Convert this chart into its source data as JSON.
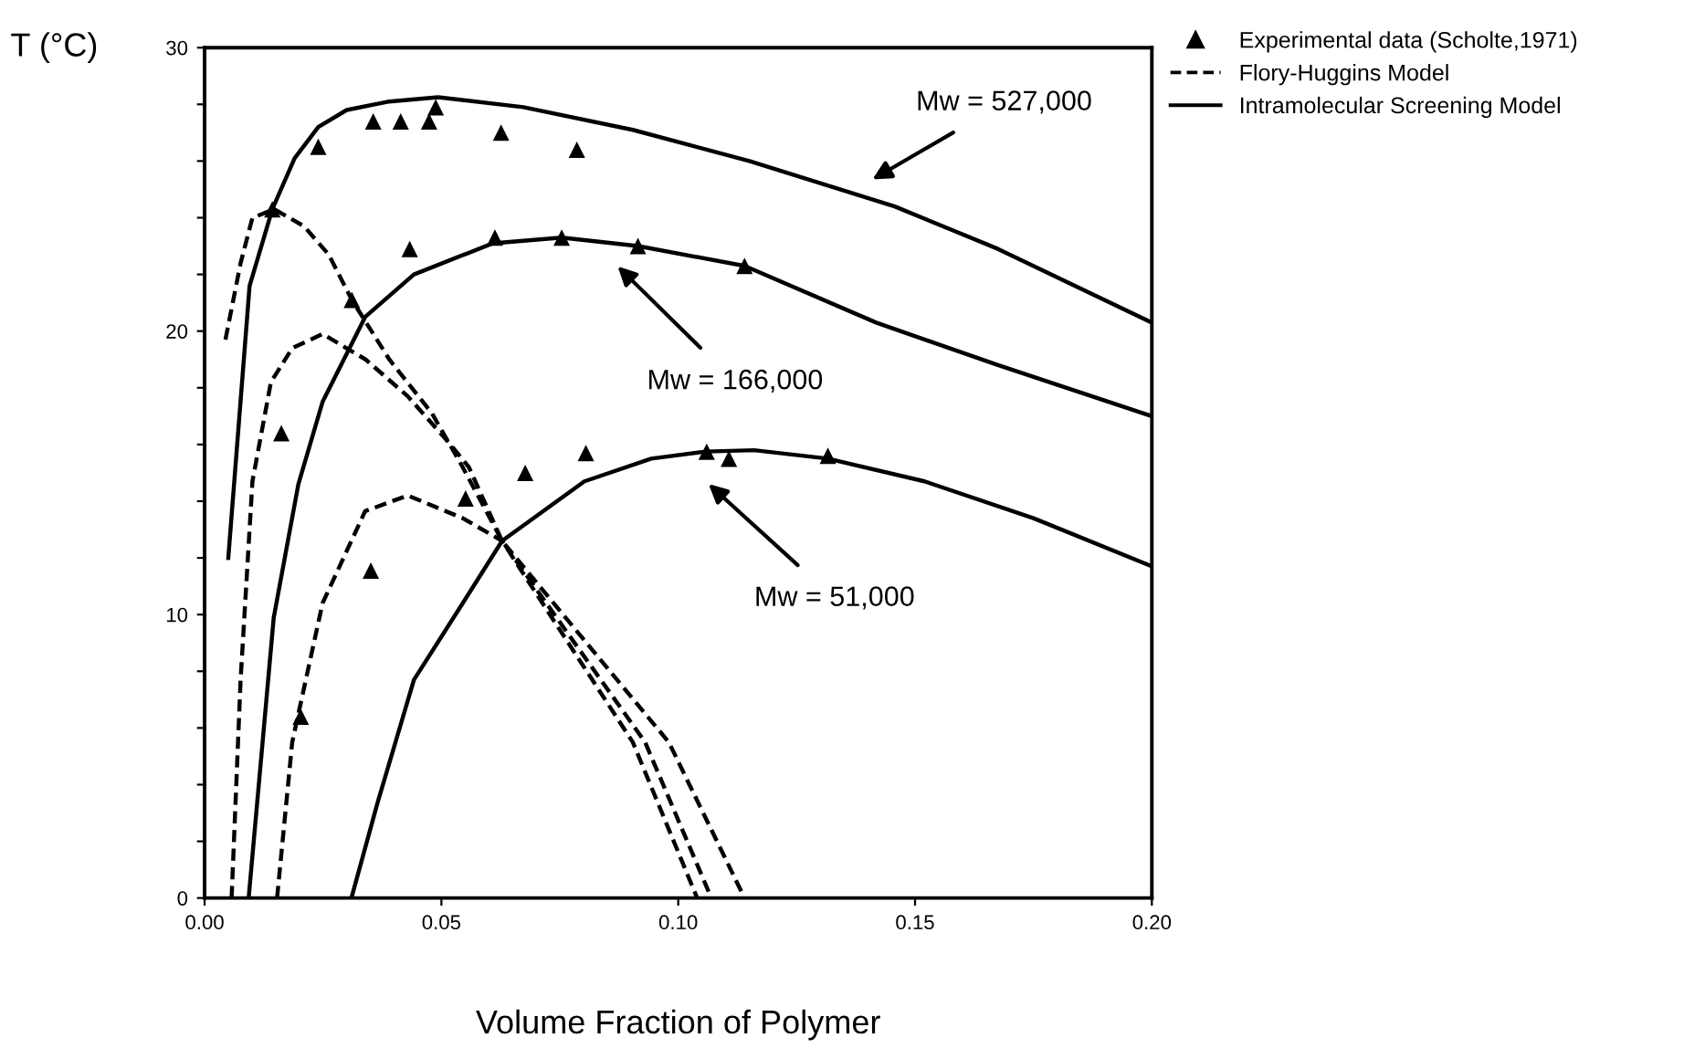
{
  "chart_data": {
    "type": "line",
    "xlabel": "Volume Fraction of Polymer",
    "ylabel": "T (°C)",
    "xlim": [
      0,
      0.2
    ],
    "ylim": [
      0,
      30
    ],
    "xticks": [
      {
        "value": 0,
        "label": "0.00"
      },
      {
        "value": 0.05,
        "label": "0.05"
      },
      {
        "value": 0.1,
        "label": "0.10"
      },
      {
        "value": 0.15,
        "label": "0.15"
      },
      {
        "value": 0.2,
        "label": "0.20"
      }
    ],
    "yticks": [
      0,
      {
        "value": 2,
        "label": null
      },
      {
        "value": 4,
        "label": null
      },
      {
        "value": 6,
        "label": null
      },
      {
        "value": 8,
        "label": null
      },
      10,
      {
        "value": 12,
        "label": null
      },
      {
        "value": 14,
        "label": null
      },
      {
        "value": 16,
        "label": null
      },
      {
        "value": 18,
        "label": null
      },
      20,
      {
        "value": 22,
        "label": null
      },
      {
        "value": 24,
        "label": null
      },
      {
        "value": 26,
        "label": null
      },
      {
        "value": 28,
        "label": null
      },
      30
    ],
    "legend": "top right",
    "grid": false,
    "series": [
      {
        "name": "Experimental data (Scholte,1971)",
        "type": "scatter",
        "marker": "triangle",
        "color": "#000000",
        "x": [
          0.024,
          0.0356,
          0.0414,
          0.0474,
          0.0488,
          0.0626,
          0.0786,
          0.0143,
          0.0433,
          0.0613,
          0.0754,
          0.0915,
          0.114,
          0.0311,
          0.0162,
          0.0805,
          0.106,
          0.1107,
          0.1316,
          0.0677,
          0.0551,
          0.0351,
          0.0203
        ],
        "values": [
          26.5,
          27.4,
          27.4,
          27.4,
          27.9,
          27.0,
          26.4,
          24.3,
          22.9,
          23.3,
          23.3,
          23.0,
          22.3,
          21.1,
          16.4,
          15.7,
          15.75,
          15.5,
          15.6,
          15.0,
          14.1,
          11.55,
          6.4
        ]
      },
      {
        "name": "Flory-Huggins Model",
        "type": "line",
        "line_style": "dashed",
        "color": "#000000",
        "x": [
          0.0044,
          0.0076,
          0.0101,
          0.0147,
          0.021,
          0.0262,
          0.0311,
          0.039,
          0.048,
          0.0545,
          0.0628,
          0.098,
          0.114
        ],
        "values": [
          19.7,
          22.4,
          24.0,
          24.3,
          23.7,
          22.7,
          21.1,
          19.0,
          17.1,
          15.2,
          12.6,
          5.5,
          0
        ]
      },
      {
        "type": "line",
        "line_style": "dashed",
        "color": "#000000",
        "x": [
          0.0057,
          0.0076,
          0.0101,
          0.014,
          0.0185,
          0.0249,
          0.034,
          0.0429,
          0.0519,
          0.0558,
          0.0628,
          0.093,
          0.107
        ],
        "values": [
          0,
          7.7,
          14.7,
          18.2,
          19.4,
          19.9,
          19.0,
          17.7,
          16.0,
          15.2,
          12.6,
          5.5,
          0
        ]
      },
      {
        "type": "line",
        "line_style": "dashed",
        "color": "#000000",
        "x": [
          0.0153,
          0.0185,
          0.0249,
          0.0339,
          0.0429,
          0.0545,
          0.0628,
          0.0904,
          0.104
        ],
        "values": [
          0,
          5.5,
          10.4,
          13.65,
          14.2,
          13.4,
          12.6,
          5.5,
          0
        ]
      },
      {
        "name": "Intramolecular Screening Model",
        "type": "line",
        "line_style": "solid",
        "color": "#000000",
        "x": [
          0.005,
          0.0095,
          0.0143,
          0.019,
          0.024,
          0.03,
          0.039,
          0.0493,
          0.0673,
          0.0904,
          0.115,
          0.1457,
          0.1675,
          0.2
        ],
        "values": [
          12.0,
          21.6,
          24.3,
          26.1,
          27.2,
          27.8,
          28.1,
          28.25,
          27.9,
          27.1,
          26.0,
          24.4,
          22.9,
          20.3
        ]
      },
      {
        "type": "line",
        "line_style": "solid",
        "color": "#000000",
        "x": [
          0.0093,
          0.0146,
          0.0198,
          0.0249,
          0.0339,
          0.0442,
          0.0609,
          0.0754,
          0.0915,
          0.114,
          0.1418,
          0.1675,
          0.2
        ],
        "values": [
          0,
          9.9,
          14.6,
          17.5,
          20.5,
          22.0,
          23.1,
          23.3,
          23.0,
          22.3,
          20.3,
          18.8,
          17.0
        ]
      },
      {
        "type": "line",
        "line_style": "solid",
        "color": "#000000",
        "x": [
          0.031,
          0.0365,
          0.0442,
          0.0545,
          0.0628,
          0.0802,
          0.0943,
          0.1059,
          0.116,
          0.1316,
          0.152,
          0.175,
          0.2
        ],
        "values": [
          0,
          3.35,
          7.7,
          10.4,
          12.6,
          14.7,
          15.5,
          15.75,
          15.8,
          15.5,
          14.7,
          13.4,
          11.7
        ]
      }
    ],
    "annotations": [
      "Mw = 527,000",
      "Mw = 166,000",
      "Mw = 51,000"
    ]
  }
}
